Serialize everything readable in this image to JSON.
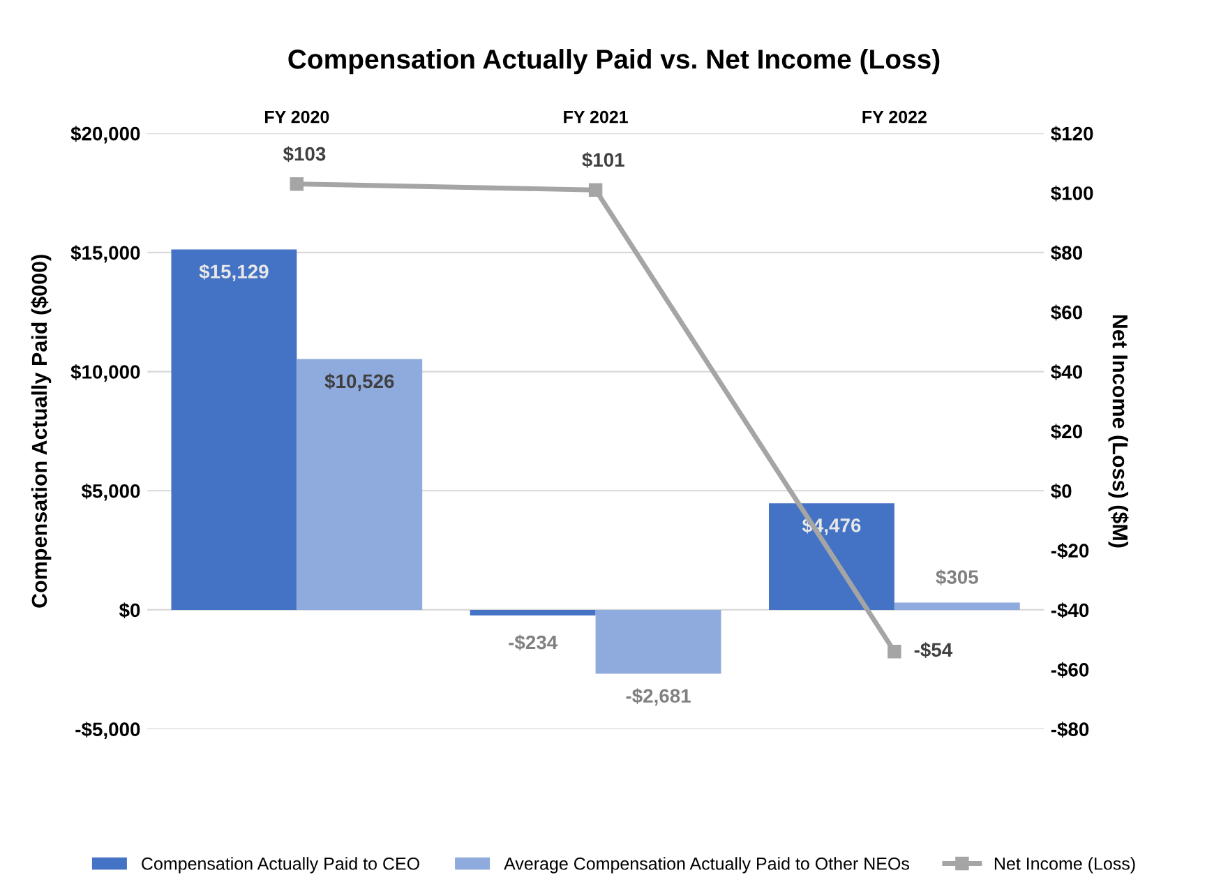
{
  "chart_data": {
    "type": "bar",
    "title": "Compensation Actually Paid vs. Net Income (Loss)",
    "categories": [
      "FY 2020",
      "FY 2021",
      "FY 2022"
    ],
    "ylabel": "Compensation Actually Paid ($000)",
    "y2label": "Net Income (Loss) ($M)",
    "ylim": [
      -5000,
      20000
    ],
    "yticks": [
      {
        "value": -5000,
        "label": "-$5,000"
      },
      {
        "value": 0,
        "label": "$0"
      },
      {
        "value": 5000,
        "label": "$5,000"
      },
      {
        "value": 10000,
        "label": "$10,000"
      },
      {
        "value": 15000,
        "label": "$15,000"
      },
      {
        "value": 20000,
        "label": "$20,000"
      }
    ],
    "y2lim": [
      -80,
      120
    ],
    "y2ticks": [
      {
        "value": -80,
        "label": "-$80"
      },
      {
        "value": -60,
        "label": "-$60"
      },
      {
        "value": -40,
        "label": "-$40"
      },
      {
        "value": -20,
        "label": "-$20"
      },
      {
        "value": 0,
        "label": "$0"
      },
      {
        "value": 20,
        "label": "$20"
      },
      {
        "value": 40,
        "label": "$40"
      },
      {
        "value": 60,
        "label": "$60"
      },
      {
        "value": 80,
        "label": "$80"
      },
      {
        "value": 100,
        "label": "$100"
      },
      {
        "value": 120,
        "label": "$120"
      }
    ],
    "grid": "y",
    "legend": "bottom",
    "series": [
      {
        "name": "Compensation Actually Paid to CEO",
        "color": "#4472c4",
        "values": [
          15129,
          -234,
          4476
        ],
        "value_labels": [
          "$15,129",
          "-$234",
          "$4,476"
        ]
      },
      {
        "name": "Average Compensation Actually Paid to Other NEOs",
        "color": "#8faadc",
        "values": [
          10526,
          -2681,
          305
        ],
        "value_labels": [
          "$10,526",
          "-$2,681",
          "$305"
        ]
      },
      {
        "name": "Net Income (Loss)",
        "type": "line",
        "axis": "y2",
        "color": "#a5a5a5",
        "marker": "square",
        "values": [
          103,
          101,
          -54
        ],
        "value_labels": [
          "$103",
          "$101",
          "-$54"
        ]
      }
    ]
  }
}
